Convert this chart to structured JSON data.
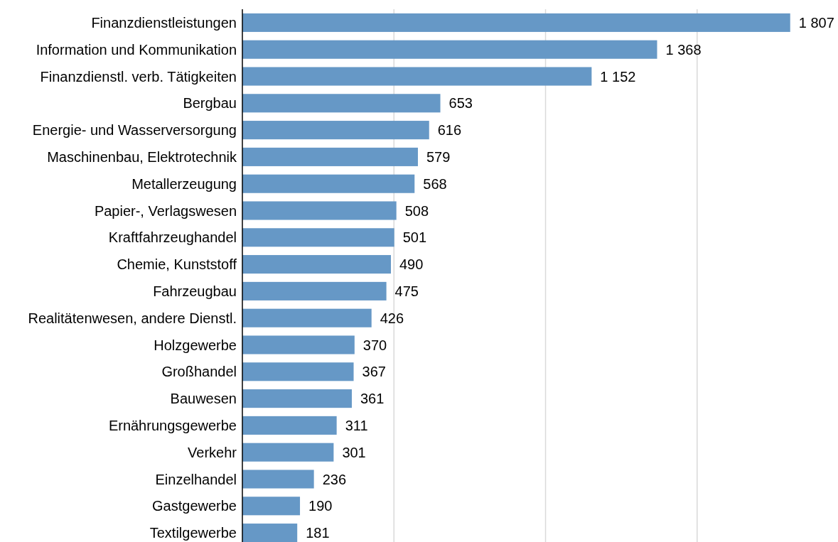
{
  "chart_data": {
    "type": "bar",
    "orientation": "horizontal",
    "categories": [
      "Finanzdienstleistungen",
      "Information und Kommunikation",
      "Finanzdienstl. verb. Tätigkeiten",
      "Bergbau",
      "Energie- und Wasserversorgung",
      "Maschinenbau, Elektrotechnik",
      "Metallerzeugung",
      "Papier-, Verlagswesen",
      "Kraftfahrzeughandel",
      "Chemie, Kunststoff",
      "Fahrzeugbau",
      "Realitätenwesen, andere Dienstl.",
      "Holzgewerbe",
      "Großhandel",
      "Bauwesen",
      "Ernährungsgewerbe",
      "Verkehr",
      "Einzelhandel",
      "Gastgewerbe",
      "Textilgewerbe"
    ],
    "values": [
      1807,
      1368,
      1152,
      653,
      616,
      579,
      568,
      508,
      501,
      490,
      475,
      426,
      370,
      367,
      361,
      311,
      301,
      236,
      190,
      181
    ],
    "value_labels": [
      "1 807",
      "1 368",
      "1 152",
      "653",
      "616",
      "579",
      "568",
      "508",
      "501",
      "490",
      "475",
      "426",
      "370",
      "367",
      "361",
      "311",
      "301",
      "236",
      "190",
      "181"
    ],
    "color": "#6698c6",
    "xlim": [
      0,
      1960
    ],
    "xticks": [
      {
        "value": 500,
        "label": null
      },
      {
        "value": 1000,
        "label": null
      },
      {
        "value": 1500,
        "label": null
      }
    ],
    "grid": "x",
    "tick_labels": "y"
  }
}
